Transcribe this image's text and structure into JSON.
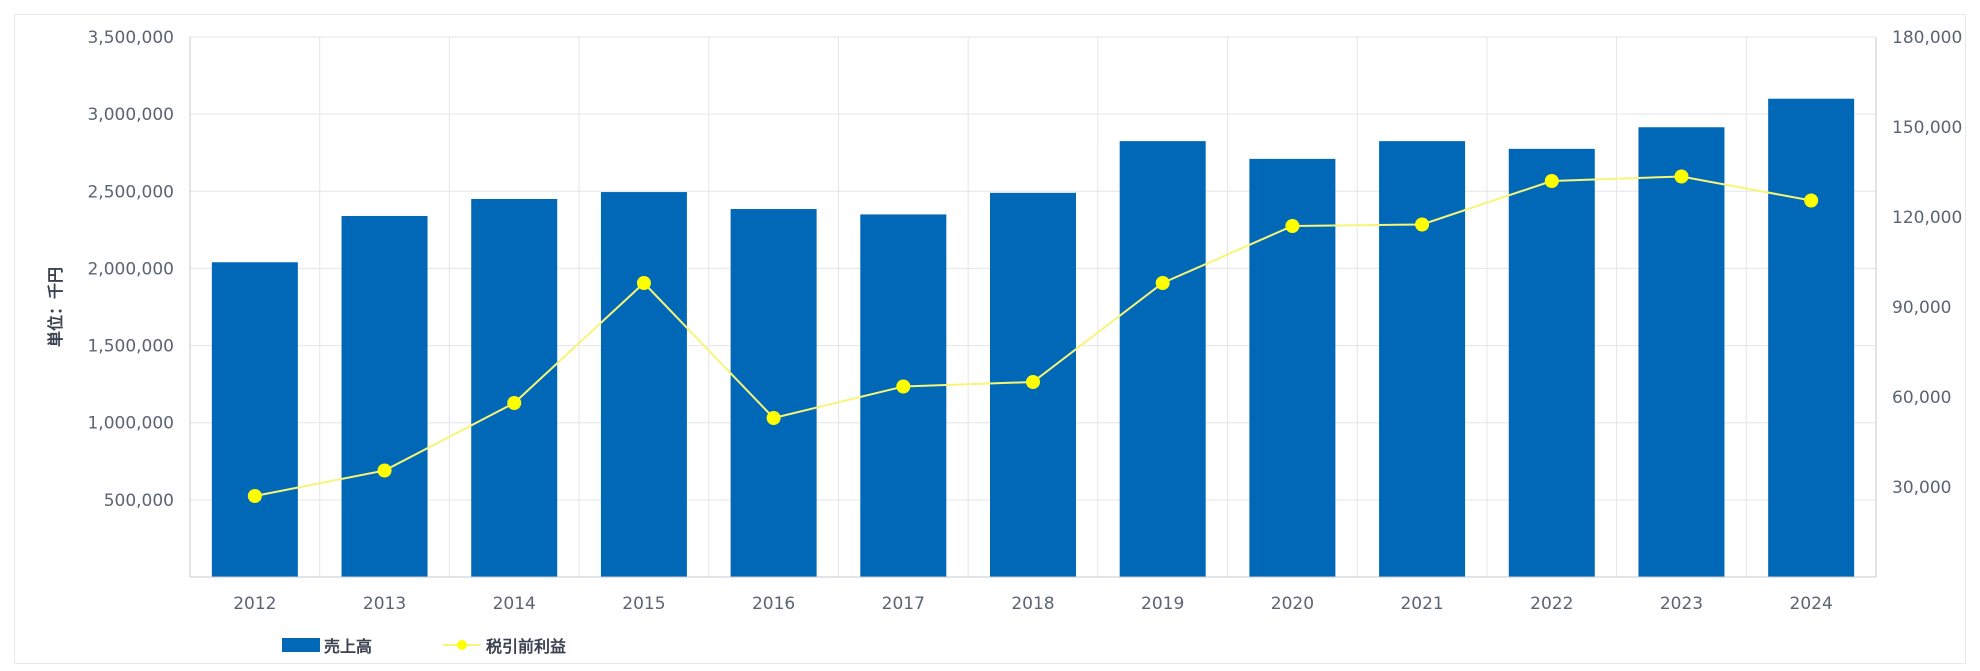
{
  "chart_data": {
    "type": "bar",
    "categories": [
      "2012",
      "2013",
      "2014",
      "2015",
      "2016",
      "2017",
      "2018",
      "2019",
      "2020",
      "2021",
      "2022",
      "2023",
      "2024"
    ],
    "series": [
      {
        "name": "売上高",
        "type": "bar",
        "axis": "left",
        "color": "#0068b7",
        "values": [
          2040000,
          2340000,
          2450000,
          2495000,
          2385000,
          2350000,
          2490000,
          2825000,
          2710000,
          2825000,
          2775000,
          2915000,
          3100000
        ]
      },
      {
        "name": "税引前利益",
        "type": "line",
        "axis": "right",
        "color": "#ffff00",
        "line_color": "#f6f57a",
        "values": [
          27000,
          35500,
          58000,
          98000,
          53000,
          63500,
          65000,
          98000,
          117000,
          117500,
          132000,
          133500,
          125500
        ]
      }
    ],
    "ylabel": "単位：千円",
    "ylim_left": [
      0,
      3500000
    ],
    "ylim_right": [
      0,
      180000
    ],
    "yticks_left": [
      "500,000",
      "1,000,000",
      "1,500,000",
      "2,000,000",
      "2,500,000",
      "3,000,000",
      "3,500,000"
    ],
    "yticks_right": [
      "30,000",
      "60,000",
      "90,000",
      "120,000",
      "150,000",
      "180,000"
    ],
    "grid": true,
    "legend_position": "bottom-left"
  }
}
